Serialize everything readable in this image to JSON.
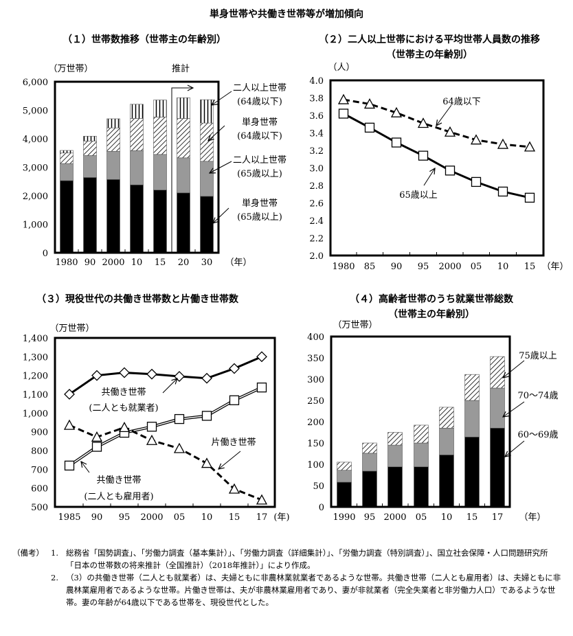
{
  "title": "単身世帯や共働き世帯等が増加傾向",
  "chart_data": [
    {
      "type": "stacked-bar",
      "title": "（１）世帯数推移（世帯主の年齢別）",
      "subtitle": "",
      "ylabel": "（万世帯）",
      "xlabel": "（年）",
      "ylim": [
        0,
        6000
      ],
      "yticks": [
        0,
        1000,
        2000,
        3000,
        4000,
        5000,
        6000
      ],
      "ytick_labels": [
        "0",
        "1,000",
        "2,000",
        "3,000",
        "4,000",
        "5,000",
        "6,000"
      ],
      "categories": [
        "1980",
        "90",
        "2000",
        "10",
        "15",
        "20",
        "30"
      ],
      "projection_label": "推計",
      "projection_from": "20",
      "series": [
        {
          "name": "二人以上世帯 (64歳以下)",
          "fill": "black",
          "values": [
            2530,
            2640,
            2570,
            2380,
            2200,
            2100,
            1980
          ]
        },
        {
          "name": "単身世帯 (64歳以下)",
          "fill": "gray",
          "values": [
            600,
            770,
            990,
            1200,
            1250,
            1230,
            1230
          ]
        },
        {
          "name": "二人以上世帯 (65歳以上)",
          "fill": "diagonal-hatch",
          "values": [
            370,
            510,
            820,
            1130,
            1310,
            1380,
            1340
          ]
        },
        {
          "name": "単身世帯 (65歳以上)",
          "fill": "vertical-hatch",
          "values": [
            90,
            170,
            320,
            500,
            600,
            730,
            820
          ]
        }
      ],
      "grid": false
    },
    {
      "type": "line",
      "title": "（２）二人以上世帯における平均世帯人員数の推移",
      "subtitle": "（世帯主の年齢別）",
      "ylabel": "（人）",
      "xlabel": "（年）",
      "ylim": [
        2.0,
        4.0
      ],
      "yticks": [
        2.0,
        2.2,
        2.4,
        2.6,
        2.8,
        3.0,
        3.2,
        3.4,
        3.6,
        3.8,
        4.0
      ],
      "ytick_labels": [
        "2.0",
        "2.2",
        "2.4",
        "2.6",
        "2.8",
        "3.0",
        "3.2",
        "3.4",
        "3.6",
        "3.8",
        "4.0"
      ],
      "categories": [
        "1980",
        "85",
        "90",
        "95",
        "2000",
        "05",
        "10",
        "15"
      ],
      "series": [
        {
          "name": "64歳以下",
          "style": "dashed",
          "marker": "triangle",
          "values": [
            3.78,
            3.73,
            3.63,
            3.51,
            3.41,
            3.32,
            3.27,
            3.24
          ]
        },
        {
          "name": "65歳以上",
          "style": "solid",
          "marker": "square",
          "values": [
            3.62,
            3.46,
            3.29,
            3.14,
            2.97,
            2.84,
            2.73,
            2.66
          ]
        }
      ],
      "grid": false
    },
    {
      "type": "line",
      "title": "（３）現役世代の共働き世帯数と片働き世帯数",
      "subtitle": "",
      "ylabel": "（万世帯）",
      "xlabel": "(年)",
      "ylim": [
        500,
        1400
      ],
      "yticks": [
        500,
        600,
        700,
        800,
        900,
        1000,
        1100,
        1200,
        1300,
        1400
      ],
      "ytick_labels": [
        "500",
        "600",
        "700",
        "800",
        "900",
        "1,000",
        "1,100",
        "1,200",
        "1,300",
        "1,400"
      ],
      "categories": [
        "1985",
        "90",
        "95",
        "2000",
        "05",
        "10",
        "15",
        "17"
      ],
      "series": [
        {
          "name": "共働き世帯 (二人とも就業者)",
          "style": "solid",
          "marker": "diamond",
          "values": [
            1100,
            1200,
            1215,
            1207,
            1195,
            1185,
            1237,
            1300
          ]
        },
        {
          "name": "共働き世帯 (二人とも雇用者)",
          "style": "double",
          "marker": "square",
          "values": [
            720,
            820,
            895,
            927,
            968,
            985,
            1068,
            1136
          ]
        },
        {
          "name": "片働き世帯",
          "style": "dashed",
          "marker": "triangle",
          "values": [
            935,
            872,
            923,
            854,
            811,
            732,
            595,
            537
          ]
        }
      ],
      "grid": false
    },
    {
      "type": "stacked-bar",
      "title": "（４）高齢者世帯のうち就業世帯総数",
      "subtitle": "（世帯主の年齢別）",
      "ylabel": "（万世帯）",
      "xlabel": "（年）",
      "ylim": [
        0,
        400
      ],
      "yticks": [
        0,
        50,
        100,
        150,
        200,
        250,
        300,
        350,
        400
      ],
      "ytick_labels": [
        "0",
        "50",
        "100",
        "150",
        "200",
        "250",
        "300",
        "350",
        "400"
      ],
      "categories": [
        "1990",
        "95",
        "2000",
        "05",
        "10",
        "15",
        "17"
      ],
      "series": [
        {
          "name": "60～69歳",
          "fill": "black",
          "values": [
            58,
            84,
            94,
            94,
            122,
            164,
            185
          ]
        },
        {
          "name": "70～74歳",
          "fill": "gray",
          "values": [
            28,
            42,
            51,
            56,
            63,
            86,
            94
          ]
        },
        {
          "name": "75歳以上",
          "fill": "diagonal-hatch",
          "values": [
            19,
            24,
            30,
            42,
            49,
            61,
            74
          ]
        }
      ],
      "grid": false
    }
  ],
  "notes": {
    "head": "（備考）",
    "items": [
      {
        "num": "1.",
        "text": "総務省「国勢調査」、「労働力調査（基本集計）」、「労働力調査（詳細集計）」、「労働力調査（特別調査）」、国立社会保障・人口問題研究所「日本の世帯数の将来推計（全国推計）（2018年推計）」により作成。"
      },
      {
        "num": "2.",
        "text": "（3）の共働き世帯（二人とも就業者）は、夫婦ともに非農林業就業者であるような世帯。共働き世帯（二人とも雇用者）は、夫婦ともに非農林業雇用者であるような世帯。片働き世帯は、夫が非農林業雇用者であり、妻が非就業者（完全失業者と非労働力人口）であるような世帯。妻の年齢が64歳以下である世帯を、現役世代とした。"
      }
    ]
  },
  "colors": {
    "black": "#000000",
    "gray": "#999999",
    "hatch": "#000000",
    "background": "#ffffff"
  }
}
